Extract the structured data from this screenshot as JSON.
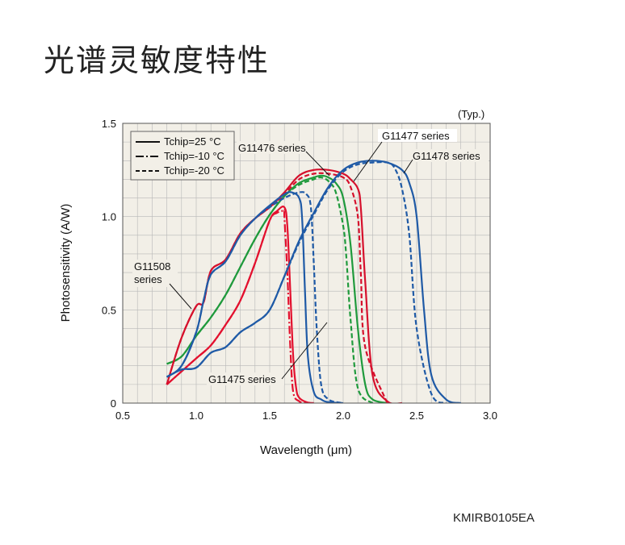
{
  "page": {
    "title": "光谱灵敏度特性",
    "figure_code": "KMIRB0105EA"
  },
  "chart_data": {
    "type": "line",
    "note": "(Typ.)",
    "xlabel": "Wavelength (μm)",
    "ylabel": "Photosensitivity (A/W)",
    "xlim": [
      0.5,
      3.0
    ],
    "ylim": [
      0,
      1.5
    ],
    "xticks": [
      0.5,
      1.0,
      1.5,
      2.0,
      2.5,
      3.0
    ],
    "xtick_labels": [
      "0.5",
      "1.0",
      "1.5",
      "2.0",
      "2.5",
      "3.0"
    ],
    "yticks": [
      0,
      0.5,
      1.0,
      1.5
    ],
    "ytick_labels": [
      "0",
      "0.5",
      "1.0",
      "1.5"
    ],
    "grid": true,
    "legend": {
      "placement": "top-left",
      "entries": [
        {
          "label": "Tchip=25 °C",
          "style": "solid"
        },
        {
          "label": "Tchip=-10 °C",
          "style": "dashdot"
        },
        {
          "label": "Tchip=-20 °C",
          "style": "dashed"
        }
      ]
    },
    "colors": {
      "G11475": "#e3102e",
      "G11476": "#1f9a3c",
      "G11477": "#d6102c",
      "G11478": "#1f5aa6",
      "G11508": "#1f5aa6",
      "background": "#f2efe7",
      "grid": "#b7b7b7"
    },
    "series": [
      {
        "name": "G11475",
        "color": "#e3102e",
        "style": "solid",
        "x": [
          0.8,
          0.9,
          1.0,
          1.1,
          1.2,
          1.3,
          1.4,
          1.5,
          1.55,
          1.6,
          1.62,
          1.64,
          1.66,
          1.68,
          1.7,
          1.75,
          1.8
        ],
        "y": [
          0.1,
          0.17,
          0.24,
          0.31,
          0.42,
          0.55,
          0.75,
          0.98,
          1.03,
          1.05,
          0.95,
          0.6,
          0.25,
          0.08,
          0.03,
          0.005,
          0.0
        ]
      },
      {
        "name": "G11475",
        "color": "#e3102e",
        "style": "dashdot",
        "x": [
          0.8,
          0.9,
          1.0,
          1.1,
          1.2,
          1.3,
          1.4,
          1.5,
          1.55,
          1.6,
          1.6,
          1.62,
          1.64,
          1.66,
          1.7,
          1.75
        ],
        "y": [
          0.1,
          0.17,
          0.24,
          0.31,
          0.42,
          0.55,
          0.75,
          0.98,
          1.02,
          1.03,
          1.0,
          0.7,
          0.3,
          0.06,
          0.01,
          0.0
        ]
      },
      {
        "name": "G11476",
        "color": "#1f9a3c",
        "style": "solid",
        "x": [
          0.8,
          0.9,
          1.0,
          1.1,
          1.2,
          1.3,
          1.4,
          1.5,
          1.6,
          1.7,
          1.8,
          1.85,
          1.9,
          1.95,
          2.0,
          2.05,
          2.1,
          2.15,
          2.2,
          2.3
        ],
        "y": [
          0.21,
          0.25,
          0.36,
          0.46,
          0.58,
          0.73,
          0.88,
          1.01,
          1.11,
          1.18,
          1.21,
          1.22,
          1.21,
          1.18,
          1.1,
          0.85,
          0.4,
          0.1,
          0.02,
          0.0
        ]
      },
      {
        "name": "G11476",
        "color": "#1f9a3c",
        "style": "dashed",
        "x": [
          0.8,
          0.9,
          1.0,
          1.1,
          1.2,
          1.3,
          1.4,
          1.5,
          1.6,
          1.7,
          1.8,
          1.85,
          1.9,
          1.95,
          2.0,
          2.02,
          2.05,
          2.1,
          2.2
        ],
        "y": [
          0.21,
          0.25,
          0.36,
          0.46,
          0.58,
          0.73,
          0.88,
          1.01,
          1.11,
          1.17,
          1.2,
          1.21,
          1.19,
          1.13,
          0.95,
          0.8,
          0.45,
          0.08,
          0.0
        ]
      },
      {
        "name": "G11477",
        "color": "#d6102c",
        "style": "solid",
        "x": [
          0.8,
          0.9,
          1.0,
          1.05,
          1.1,
          1.2,
          1.3,
          1.4,
          1.5,
          1.6,
          1.7,
          1.8,
          1.9,
          2.0,
          2.05,
          2.1,
          2.12,
          2.15,
          2.2,
          2.3,
          2.4
        ],
        "y": [
          0.1,
          0.35,
          0.52,
          0.54,
          0.71,
          0.77,
          0.91,
          0.99,
          1.05,
          1.13,
          1.22,
          1.25,
          1.25,
          1.23,
          1.2,
          1.15,
          1.05,
          0.65,
          0.15,
          0.01,
          0.0
        ]
      },
      {
        "name": "G11477",
        "color": "#d6102c",
        "style": "dashed",
        "x": [
          0.8,
          0.9,
          1.0,
          1.05,
          1.1,
          1.2,
          1.3,
          1.4,
          1.5,
          1.6,
          1.7,
          1.8,
          1.9,
          2.0,
          2.05,
          2.1,
          2.12,
          2.15,
          2.3
        ],
        "y": [
          0.1,
          0.35,
          0.52,
          0.54,
          0.71,
          0.77,
          0.91,
          0.99,
          1.05,
          1.12,
          1.2,
          1.23,
          1.23,
          1.21,
          1.16,
          1.0,
          0.7,
          0.3,
          0.0
        ]
      },
      {
        "name": "G11478",
        "color": "#1f5aa6",
        "style": "solid",
        "x": [
          0.8,
          0.9,
          1.0,
          1.1,
          1.2,
          1.3,
          1.4,
          1.5,
          1.6,
          1.7,
          1.8,
          1.9,
          2.0,
          2.1,
          2.2,
          2.3,
          2.4,
          2.45,
          2.5,
          2.55,
          2.6,
          2.7,
          2.8
        ],
        "y": [
          0.14,
          0.18,
          0.19,
          0.27,
          0.3,
          0.38,
          0.43,
          0.5,
          0.68,
          0.87,
          1.02,
          1.16,
          1.25,
          1.29,
          1.3,
          1.29,
          1.25,
          1.18,
          1.0,
          0.5,
          0.15,
          0.02,
          0.0
        ]
      },
      {
        "name": "G11478",
        "color": "#1f5aa6",
        "style": "dashed",
        "x": [
          0.8,
          0.9,
          1.0,
          1.1,
          1.2,
          1.3,
          1.4,
          1.5,
          1.6,
          1.7,
          1.8,
          1.9,
          2.0,
          2.1,
          2.2,
          2.3,
          2.35,
          2.4,
          2.45,
          2.5,
          2.6,
          2.7
        ],
        "y": [
          0.14,
          0.18,
          0.19,
          0.27,
          0.3,
          0.38,
          0.43,
          0.5,
          0.68,
          0.86,
          1.01,
          1.15,
          1.24,
          1.28,
          1.29,
          1.29,
          1.26,
          1.15,
          0.9,
          0.4,
          0.05,
          0.0
        ]
      },
      {
        "name": "G11508",
        "color": "#1f5aa6",
        "style": "solid",
        "x": [
          0.8,
          0.9,
          1.0,
          1.05,
          1.1,
          1.2,
          1.3,
          1.4,
          1.5,
          1.6,
          1.65,
          1.7,
          1.72,
          1.74,
          1.76,
          1.8,
          1.85,
          1.9,
          2.0
        ],
        "y": [
          0.14,
          0.2,
          0.38,
          0.55,
          0.69,
          0.76,
          0.9,
          0.99,
          1.06,
          1.12,
          1.13,
          1.1,
          1.0,
          0.6,
          0.25,
          0.06,
          0.02,
          0.005,
          0.0
        ]
      },
      {
        "name": "G11508",
        "color": "#1f5aa6",
        "style": "dashed",
        "x": [
          0.8,
          0.9,
          1.0,
          1.05,
          1.1,
          1.2,
          1.3,
          1.4,
          1.5,
          1.6,
          1.7,
          1.75,
          1.78,
          1.8,
          1.82,
          1.85,
          1.9,
          2.0
        ],
        "y": [
          0.14,
          0.2,
          0.38,
          0.55,
          0.69,
          0.76,
          0.9,
          0.99,
          1.05,
          1.1,
          1.13,
          1.12,
          1.05,
          0.75,
          0.4,
          0.1,
          0.02,
          0.0
        ]
      }
    ],
    "annotations": [
      {
        "text": "G11476 series"
      },
      {
        "text": "G11477 series"
      },
      {
        "text": "G11478 series"
      },
      {
        "text": "G11508 series"
      },
      {
        "text": "G11475 series"
      }
    ]
  }
}
